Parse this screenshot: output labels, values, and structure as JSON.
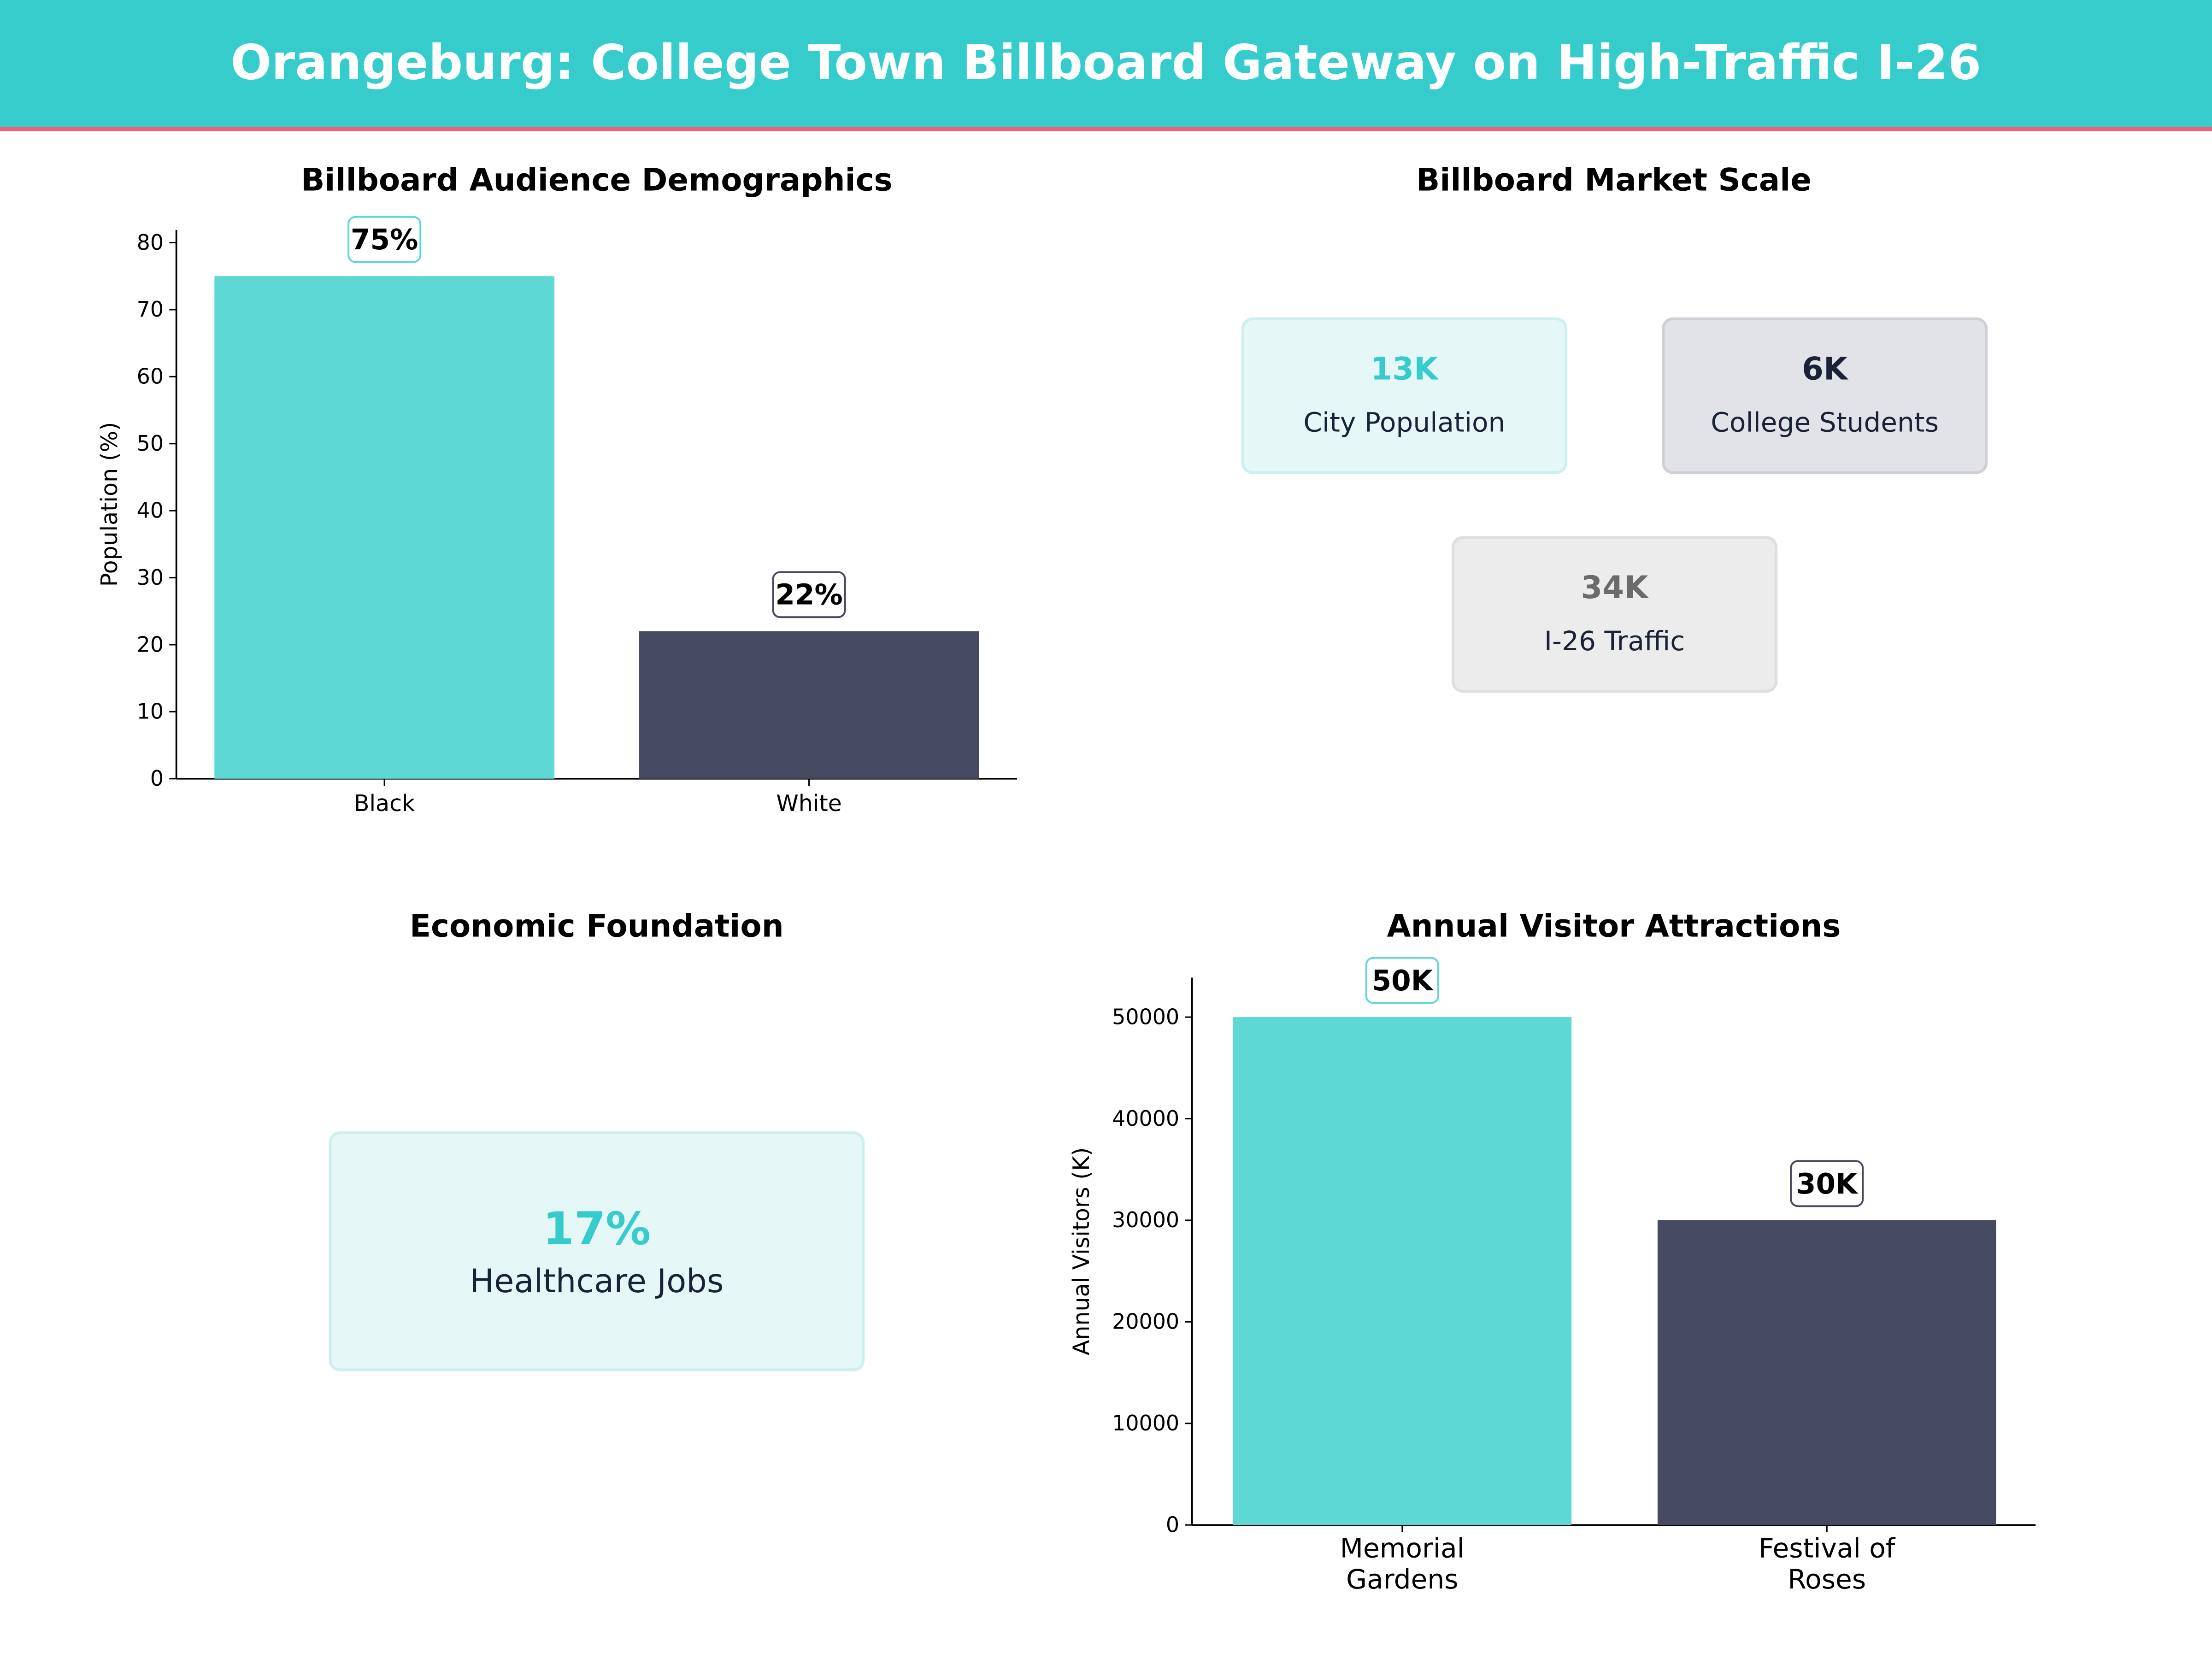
{
  "header": {
    "title": "Orangeburg: College Town Billboard Gateway on High-Traffic I-26",
    "bg_color": "#36cccc",
    "accent_line_color": "#f0607a"
  },
  "panels": {
    "market_scale": {
      "title": "Billboard Market Scale",
      "cards": [
        {
          "value": "13K",
          "label": "City Population",
          "value_color": "#36cccc",
          "bg": "#e6f7f7"
        },
        {
          "value": "6K",
          "label": "College Students",
          "value_color": "#1a2238",
          "bg": "#e2e3e8"
        },
        {
          "value": "34K",
          "label": "I-26 Traffic",
          "value_color": "#6b6b6b",
          "bg": "#ececec"
        }
      ]
    },
    "economic": {
      "title": "Economic Foundation",
      "card": {
        "value": "17%",
        "label": "Healthcare Jobs",
        "value_color": "#36cccc",
        "bg": "#e6f7f7"
      }
    }
  },
  "chart_data": [
    {
      "type": "bar",
      "title": "Billboard Audience Demographics",
      "xlabel": "",
      "ylabel": "Population (%)",
      "categories": [
        "Black",
        "White"
      ],
      "values": [
        75,
        22
      ],
      "data_labels": [
        "75%",
        "22%"
      ],
      "ylim": [
        0,
        80
      ],
      "yticks": [
        0,
        10,
        20,
        30,
        40,
        50,
        60,
        70,
        80
      ],
      "colors": [
        "#5dd8d5",
        "#464a60"
      ],
      "grid": false
    },
    {
      "type": "bar",
      "title": "Annual Visitor Attractions",
      "xlabel": "",
      "ylabel": "Annual Visitors (K)",
      "categories": [
        "Memorial\nGardens",
        "Festival of\nRoses"
      ],
      "values": [
        50000,
        30000
      ],
      "data_labels": [
        "50K",
        "30K"
      ],
      "ylim": [
        0,
        50000
      ],
      "yticks": [
        0,
        10000,
        20000,
        30000,
        40000,
        50000
      ],
      "colors": [
        "#5dd8d5",
        "#464a60"
      ],
      "grid": false
    }
  ]
}
